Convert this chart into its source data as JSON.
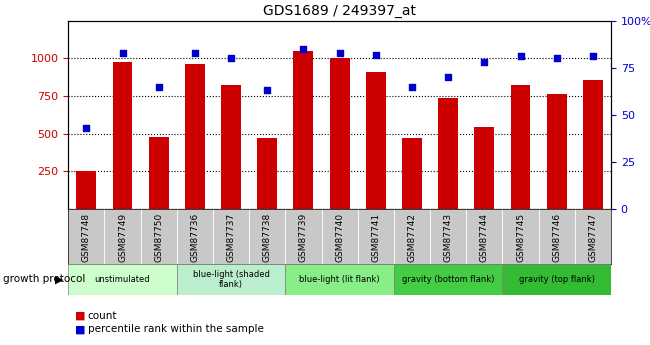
{
  "title": "GDS1689 / 249397_at",
  "samples": [
    "GSM87748",
    "GSM87749",
    "GSM87750",
    "GSM87736",
    "GSM87737",
    "GSM87738",
    "GSM87739",
    "GSM87740",
    "GSM87741",
    "GSM87742",
    "GSM87743",
    "GSM87744",
    "GSM87745",
    "GSM87746",
    "GSM87747"
  ],
  "counts": [
    250,
    975,
    480,
    960,
    820,
    470,
    1050,
    1000,
    910,
    470,
    735,
    540,
    820,
    765,
    855
  ],
  "percentiles": [
    43,
    83,
    65,
    83,
    80,
    63,
    85,
    83,
    82,
    65,
    70,
    78,
    81,
    80,
    81
  ],
  "bar_color": "#cc0000",
  "dot_color": "#0000cc",
  "ylim_left": [
    0,
    1250
  ],
  "ylim_right": [
    0,
    100
  ],
  "yticks_left": [
    250,
    500,
    750,
    1000
  ],
  "yticks_right": [
    0,
    25,
    50,
    75,
    100
  ],
  "group_defs": [
    {
      "label": "unstimulated",
      "start": 0,
      "end": 2,
      "color": "#ccffcc"
    },
    {
      "label": "blue-light (shaded\nflank)",
      "start": 3,
      "end": 5,
      "color": "#bbeecc"
    },
    {
      "label": "blue-light (lit flank)",
      "start": 6,
      "end": 8,
      "color": "#88ee88"
    },
    {
      "label": "gravity (bottom flank)",
      "start": 9,
      "end": 11,
      "color": "#44cc44"
    },
    {
      "label": "gravity (top flank)",
      "start": 12,
      "end": 14,
      "color": "#33bb33"
    }
  ],
  "sample_bg_color": "#c8c8c8",
  "legend_count_color": "#cc0000",
  "legend_pct_color": "#0000cc",
  "legend_count": "count",
  "legend_pct": "percentile rank within the sample",
  "protocol_label": "growth protocol"
}
